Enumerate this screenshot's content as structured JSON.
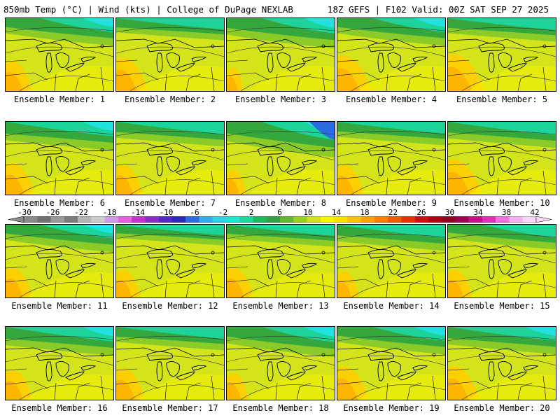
{
  "header": {
    "left": "850mb Temp (°C) | Wind (kts) | College of DuPage NEXLAB",
    "right": "18Z GEFS | F102 Valid: 00Z SAT SEP 27 2025"
  },
  "panels": [
    {
      "label": "Ensemble Member: 1",
      "warm": 0.55,
      "cold": 0.45,
      "style": "cold-ne"
    },
    {
      "label": "Ensemble Member: 2",
      "warm": 0.65,
      "cold": 0.25,
      "style": "warm"
    },
    {
      "label": "Ensemble Member: 3",
      "warm": 0.35,
      "cold": 0.55,
      "style": "cold-ne"
    },
    {
      "label": "Ensemble Member: 4",
      "warm": 0.7,
      "cold": 0.45,
      "style": "cold-ne"
    },
    {
      "label": "Ensemble Member: 5",
      "warm": 0.75,
      "cold": 0.3,
      "style": "warm"
    },
    {
      "label": "Ensemble Member: 6",
      "warm": 0.6,
      "cold": 0.5,
      "style": "cold-n"
    },
    {
      "label": "Ensemble Member: 7",
      "warm": 0.55,
      "cold": 0.35,
      "style": "warm"
    },
    {
      "label": "Ensemble Member: 8",
      "warm": 0.4,
      "cold": 0.75,
      "style": "cold-ne"
    },
    {
      "label": "Ensemble Member: 9",
      "warm": 0.55,
      "cold": 0.3,
      "style": "warm"
    },
    {
      "label": "Ensemble Member: 10",
      "warm": 0.7,
      "cold": 0.4,
      "style": "cold-n"
    },
    {
      "label": "Ensemble Member: 11",
      "warm": 0.55,
      "cold": 0.45,
      "style": "cold-ne"
    },
    {
      "label": "Ensemble Member: 12",
      "warm": 0.5,
      "cold": 0.2,
      "style": "warm"
    },
    {
      "label": "Ensemble Member: 13",
      "warm": 0.55,
      "cold": 0.25,
      "style": "warm"
    },
    {
      "label": "Ensemble Member: 14",
      "warm": 0.45,
      "cold": 0.4,
      "style": "cold-n"
    },
    {
      "label": "Ensemble Member: 15",
      "warm": 0.5,
      "cold": 0.35,
      "style": "cold-ne"
    },
    {
      "label": "Ensemble Member: 16",
      "warm": 0.55,
      "cold": 0.5,
      "style": "cold-n"
    },
    {
      "label": "Ensemble Member: 17",
      "warm": 0.6,
      "cold": 0.3,
      "style": "warm"
    },
    {
      "label": "Ensemble Member: 18",
      "warm": 0.45,
      "cold": 0.55,
      "style": "cold-ne"
    },
    {
      "label": "Ensemble Member: 19",
      "warm": 0.65,
      "cold": 0.45,
      "style": "cold-ne"
    },
    {
      "label": "Ensemble Member: 20",
      "warm": 0.65,
      "cold": 0.45,
      "style": "cold-n"
    }
  ],
  "colorbar": {
    "ticks": [
      "-30",
      "-26",
      "-22",
      "-18",
      "-14",
      "-10",
      "-6",
      "-2",
      "2",
      "6",
      "10",
      "14",
      "18",
      "22",
      "26",
      "30",
      "34",
      "38",
      "42"
    ],
    "colors": [
      "#8a8a8a",
      "#6f6f6f",
      "#9a9a9a",
      "#7c7c7c",
      "#b4b4b4",
      "#cccccc",
      "#cf9be8",
      "#e85ce0",
      "#c830d0",
      "#8a2cc8",
      "#5428c4",
      "#2a2ab8",
      "#2a6ce0",
      "#33aaf0",
      "#30d0e8",
      "#18e8d0",
      "#1cd89a",
      "#1aba5a",
      "#30a040",
      "#60b830",
      "#98d020",
      "#d0e01a",
      "#f6f600",
      "#fde000",
      "#fcc000",
      "#fca000",
      "#f87e00",
      "#f05a00",
      "#e83000",
      "#d01010",
      "#b00010",
      "#900020",
      "#a00050",
      "#c8108a",
      "#e030b8",
      "#f070e0",
      "#f4b0f0",
      "#fad4fa"
    ]
  }
}
